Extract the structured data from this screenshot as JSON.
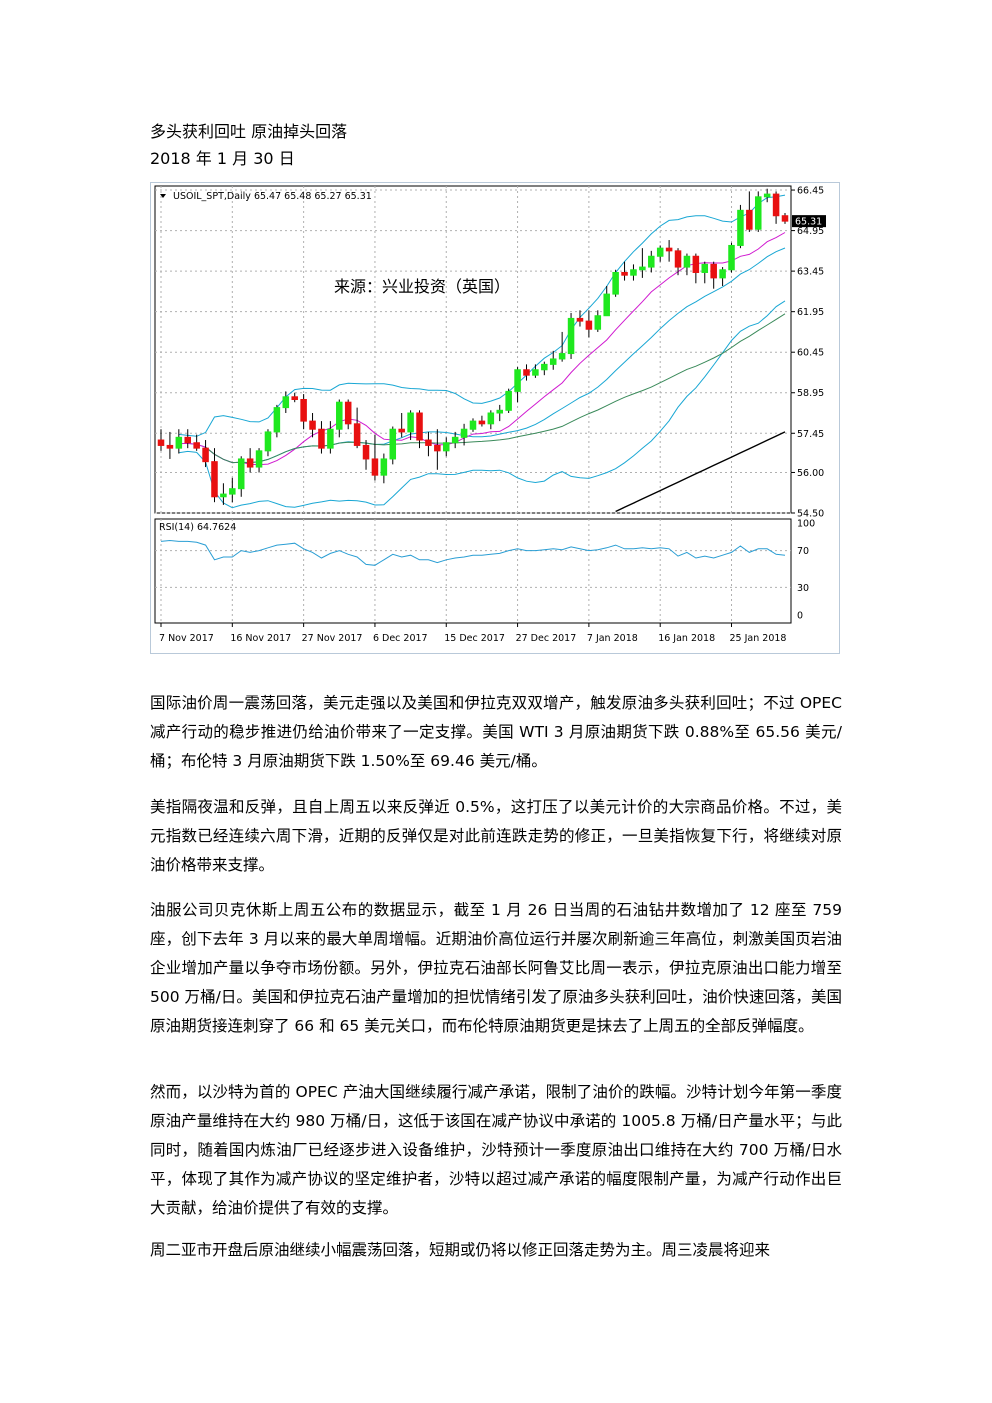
{
  "document": {
    "title": "多头获利回吐 原油掉头回落",
    "date": "2018 年 1 月 30 日",
    "paragraphs": [
      "国际油价周一震荡回落，美元走强以及美国和伊拉克双双增产，触发原油多头获利回吐；不过 OPEC 减产行动的稳步推进仍给油价带来了一定支撑。美国 WTI 3 月原油期货下跌 0.88%至 65.56 美元/桶；布伦特 3 月原油期货下跌 1.50%至 69.46 美元/桶。",
      "美指隔夜温和反弹，且自上周五以来反弹近 0.5%，这打压了以美元计价的大宗商品价格。不过，美元指数已经连续六周下滑，近期的反弹仅是对此前连跌走势的修正，一旦美指恢复下行，将继续对原油价格带来支撑。",
      "油服公司贝克休斯上周五公布的数据显示，截至 1 月 26 日当周的石油钻井数增加了 12 座至 759 座，创下去年 3 月以来的最大单周增幅。近期油价高位运行并屡次刷新逾三年高位，刺激美国页岩油企业增加产量以争夺市场份额。另外，伊拉克石油部长阿鲁艾比周一表示，伊拉克原油出口能力增至 500 万桶/日。美国和伊拉克石油产量增加的担忧情绪引发了原油多头获利回吐，油价快速回落，美国原油期货接连刺穿了 66 和 65 美元关口，而布伦特原油期货更是抹去了上周五的全部反弹幅度。",
      "然而，以沙特为首的 OPEC 产油大国继续履行减产承诺，限制了油价的跌幅。沙特计划今年第一季度原油产量维持在大约 980 万桶/日，这低于该国在减产协议中承诺的 1005.8 万桶/日产量水平；与此同时，随着国内炼油厂已经逐步进入设备维护，沙特预计一季度原油出口维持在大约 700 万桶/日水平，体现了其作为减产协议的坚定维护者，沙特以超过减产承诺的幅度限制产量，为减产行动作出巨大贡献，给油价提供了有效的支撑。",
      "周二亚市开盘后原油继续小幅震荡回落，短期或仍将以修正回落走势为主。周三凌晨将迎来"
    ]
  },
  "chart_data": {
    "type": "candlestick",
    "header": "USOIL_SPT,Daily 65.47 65.48 65.27 65.31",
    "watermark": "来源：兴业投资（英国）",
    "current_price_label": "65.31",
    "price_ticks": [
      "66.45",
      "64.95",
      "63.45",
      "61.95",
      "60.45",
      "58.95",
      "57.45",
      "56.00",
      "54.50"
    ],
    "price_tick_values": [
      66.45,
      64.95,
      63.45,
      61.95,
      60.45,
      58.95,
      57.45,
      56.0,
      54.5
    ],
    "ylim": [
      54.5,
      66.6
    ],
    "x_labels": [
      "7 Nov 2017",
      "16 Nov 2017",
      "27 Nov 2017",
      "6 Dec 2017",
      "15 Dec 2017",
      "27 Dec 2017",
      "7 Jan 2018",
      "16 Jan 2018",
      "25 Jan 2018"
    ],
    "candles": [
      [
        57.2,
        57.6,
        56.8,
        57.0
      ],
      [
        57.0,
        57.5,
        56.5,
        56.9
      ],
      [
        56.9,
        57.6,
        56.7,
        57.3
      ],
      [
        57.3,
        57.6,
        56.9,
        57.1
      ],
      [
        57.1,
        57.4,
        56.8,
        56.9
      ],
      [
        56.9,
        57.2,
        56.2,
        56.4
      ],
      [
        56.4,
        56.9,
        54.9,
        55.1
      ],
      [
        55.1,
        55.6,
        54.8,
        55.2
      ],
      [
        55.2,
        55.8,
        54.9,
        55.4
      ],
      [
        55.4,
        56.6,
        55.1,
        56.5
      ],
      [
        56.5,
        56.9,
        56.0,
        56.2
      ],
      [
        56.2,
        56.9,
        56.0,
        56.8
      ],
      [
        56.8,
        57.6,
        56.6,
        57.5
      ],
      [
        57.5,
        58.5,
        57.3,
        58.4
      ],
      [
        58.4,
        59.0,
        58.2,
        58.8
      ],
      [
        58.8,
        58.95,
        58.6,
        58.7
      ],
      [
        58.7,
        58.9,
        57.6,
        57.9
      ],
      [
        57.9,
        58.2,
        57.3,
        57.6
      ],
      [
        57.6,
        57.9,
        56.7,
        56.9
      ],
      [
        56.9,
        57.9,
        56.7,
        57.6
      ],
      [
        57.6,
        58.7,
        57.3,
        58.6
      ],
      [
        58.6,
        58.7,
        57.6,
        57.8
      ],
      [
        57.8,
        58.4,
        56.9,
        57.0
      ],
      [
        57.0,
        57.2,
        56.1,
        56.5
      ],
      [
        56.5,
        57.4,
        55.7,
        55.9
      ],
      [
        55.9,
        56.7,
        55.6,
        56.5
      ],
      [
        56.5,
        57.7,
        56.3,
        57.6
      ],
      [
        57.6,
        58.2,
        57.3,
        57.5
      ],
      [
        57.5,
        58.3,
        57.2,
        58.2
      ],
      [
        58.2,
        58.3,
        56.9,
        57.2
      ],
      [
        57.2,
        57.5,
        56.6,
        57.0
      ],
      [
        57.0,
        57.6,
        56.1,
        56.8
      ],
      [
        56.8,
        57.3,
        56.6,
        57.1
      ],
      [
        57.1,
        57.5,
        56.9,
        57.3
      ],
      [
        57.3,
        57.8,
        57.0,
        57.6
      ],
      [
        57.6,
        58.0,
        57.5,
        57.9
      ],
      [
        57.9,
        58.1,
        57.7,
        57.8
      ],
      [
        57.8,
        58.3,
        57.6,
        58.2
      ],
      [
        58.2,
        58.5,
        57.9,
        58.3
      ],
      [
        58.3,
        59.1,
        58.2,
        59.0
      ],
      [
        59.0,
        59.9,
        58.6,
        59.8
      ],
      [
        59.8,
        60.0,
        59.4,
        59.6
      ],
      [
        59.6,
        60.0,
        59.5,
        59.8
      ],
      [
        59.8,
        60.1,
        59.6,
        60.0
      ],
      [
        60.0,
        60.5,
        59.8,
        60.2
      ],
      [
        60.2,
        61.2,
        60.1,
        60.4
      ],
      [
        60.4,
        61.9,
        60.2,
        61.7
      ],
      [
        61.7,
        62.0,
        61.4,
        61.6
      ],
      [
        61.6,
        62.0,
        61.0,
        61.3
      ],
      [
        61.3,
        62.0,
        61.2,
        61.8
      ],
      [
        61.8,
        62.9,
        61.8,
        62.6
      ],
      [
        62.6,
        63.5,
        62.5,
        63.4
      ],
      [
        63.4,
        63.8,
        63.1,
        63.3
      ],
      [
        63.3,
        63.7,
        63.1,
        63.5
      ],
      [
        63.5,
        64.3,
        63.2,
        63.6
      ],
      [
        63.6,
        64.2,
        63.4,
        64.0
      ],
      [
        64.0,
        64.4,
        63.8,
        64.3
      ],
      [
        64.3,
        64.6,
        63.8,
        64.2
      ],
      [
        64.2,
        64.3,
        63.3,
        63.6
      ],
      [
        63.6,
        64.1,
        63.3,
        64.0
      ],
      [
        64.0,
        64.1,
        63.0,
        63.4
      ],
      [
        63.4,
        63.8,
        63.0,
        63.7
      ],
      [
        63.7,
        63.8,
        62.8,
        63.2
      ],
      [
        63.2,
        63.6,
        62.9,
        63.5
      ],
      [
        63.5,
        64.5,
        63.4,
        64.4
      ],
      [
        64.4,
        65.9,
        64.3,
        65.7
      ],
      [
        65.7,
        66.4,
        64.9,
        65.0
      ],
      [
        65.0,
        66.4,
        64.9,
        66.2
      ],
      [
        66.2,
        66.5,
        66.0,
        66.3
      ],
      [
        66.3,
        66.4,
        65.2,
        65.5
      ],
      [
        65.5,
        65.6,
        65.2,
        65.3
      ]
    ],
    "indicator": {
      "label": "RSI(14) 64.7624",
      "ticks": [
        "100",
        "70",
        "30",
        "0"
      ],
      "tick_values": [
        100,
        70,
        30,
        0
      ],
      "values": [
        80,
        81,
        80,
        80,
        79,
        76,
        60,
        63,
        63,
        70,
        68,
        70,
        73,
        76,
        77,
        78,
        72,
        68,
        62,
        67,
        70,
        66,
        63,
        55,
        54,
        60,
        66,
        63,
        65,
        60,
        60,
        57,
        60,
        62,
        63,
        65,
        65,
        66,
        67,
        70,
        72,
        70,
        70,
        71,
        72,
        71,
        74,
        72,
        70,
        71,
        73,
        76,
        72,
        72,
        73,
        72,
        73,
        72,
        64,
        68,
        62,
        64,
        62,
        65,
        68,
        75,
        68,
        72,
        72,
        66,
        65
      ]
    }
  }
}
